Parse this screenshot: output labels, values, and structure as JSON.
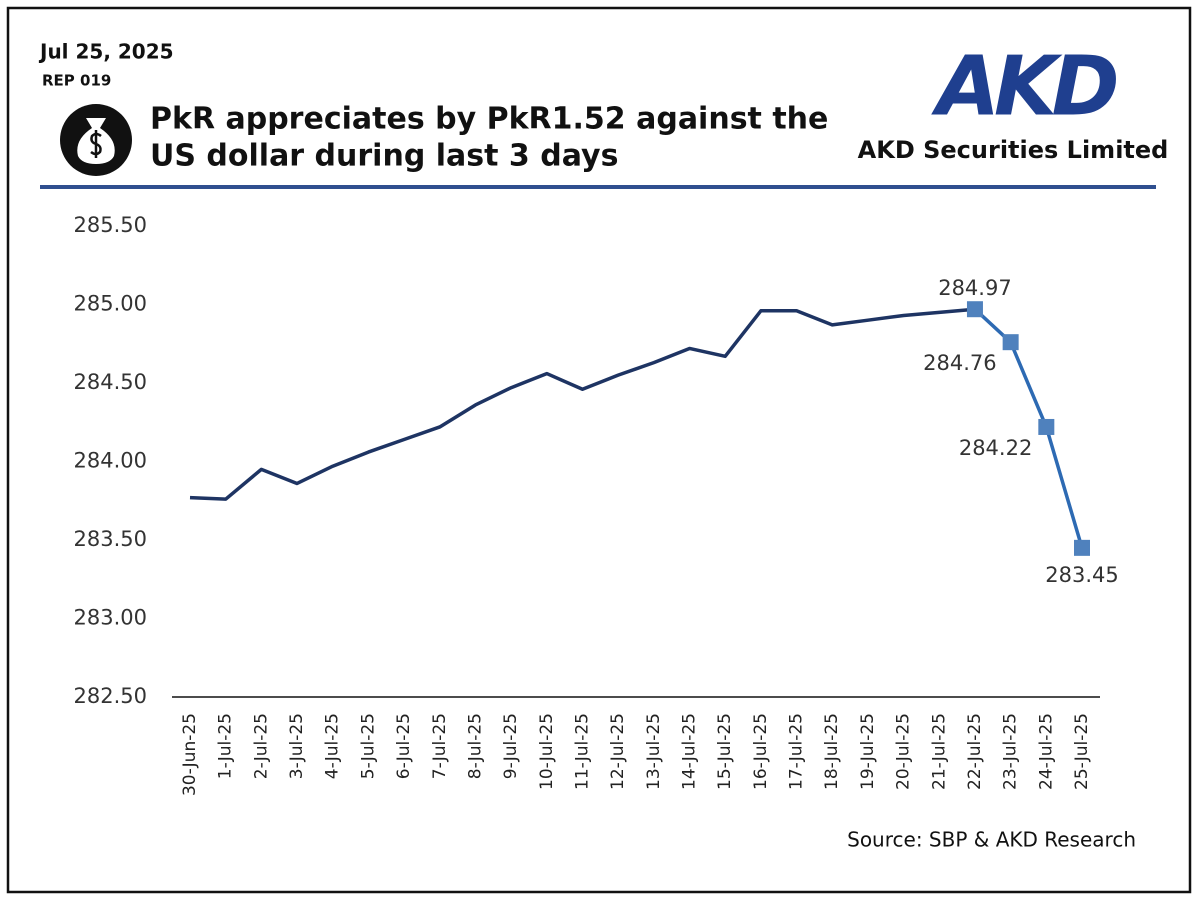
{
  "date": "Jul 25, 2025",
  "report_id": "REP 019",
  "logo": "AKD",
  "company": "AKD Securities Limited",
  "chart_data": {
    "type": "line",
    "title": [
      "PkR appreciates by PkR1.52 against the",
      "US dollar during last 3 days"
    ],
    "source": "Source: SBP & AKD Research",
    "categories": [
      "30-Jun-25",
      "1-Jul-25",
      "2-Jul-25",
      "3-Jul-25",
      "4-Jul-25",
      "5-Jul-25",
      "6-Jul-25",
      "7-Jul-25",
      "8-Jul-25",
      "9-Jul-25",
      "10-Jul-25",
      "11-Jul-25",
      "12-Jul-25",
      "13-Jul-25",
      "14-Jul-25",
      "15-Jul-25",
      "16-Jul-25",
      "17-Jul-25",
      "18-Jul-25",
      "19-Jul-25",
      "20-Jul-25",
      "21-Jul-25",
      "22-Jul-25",
      "23-Jul-25",
      "24-Jul-25",
      "25-Jul-25"
    ],
    "series": [
      {
        "color": "#1e3463",
        "values": [
          283.77,
          283.76,
          283.95,
          283.86,
          283.97,
          284.06,
          284.14,
          284.22,
          284.36,
          284.47,
          284.56,
          284.46,
          284.55,
          284.63,
          284.72,
          284.67,
          284.96,
          284.96,
          284.87,
          284.9,
          284.93,
          284.95,
          284.97,
          null,
          null,
          null
        ]
      },
      {
        "color": "#2d6ab3",
        "marker_color": "#4f81bd",
        "markers": true,
        "data_labels": true,
        "values": [
          null,
          null,
          null,
          null,
          null,
          null,
          null,
          null,
          null,
          null,
          null,
          null,
          null,
          null,
          null,
          null,
          null,
          null,
          null,
          null,
          null,
          null,
          284.97,
          284.76,
          284.22,
          283.45
        ]
      }
    ],
    "ylim": [
      282.5,
      285.5
    ],
    "yticks": [
      {
        "value": 282.5,
        "label": "282.50"
      },
      {
        "value": 283.0,
        "label": "283.00"
      },
      {
        "value": 283.5,
        "label": "283.50"
      },
      {
        "value": 284.0,
        "label": "284.00"
      },
      {
        "value": 284.5,
        "label": "284.50"
      },
      {
        "value": 285.0,
        "label": "285.00"
      },
      {
        "value": 285.5,
        "label": "285.50"
      }
    ],
    "grid": false
  }
}
